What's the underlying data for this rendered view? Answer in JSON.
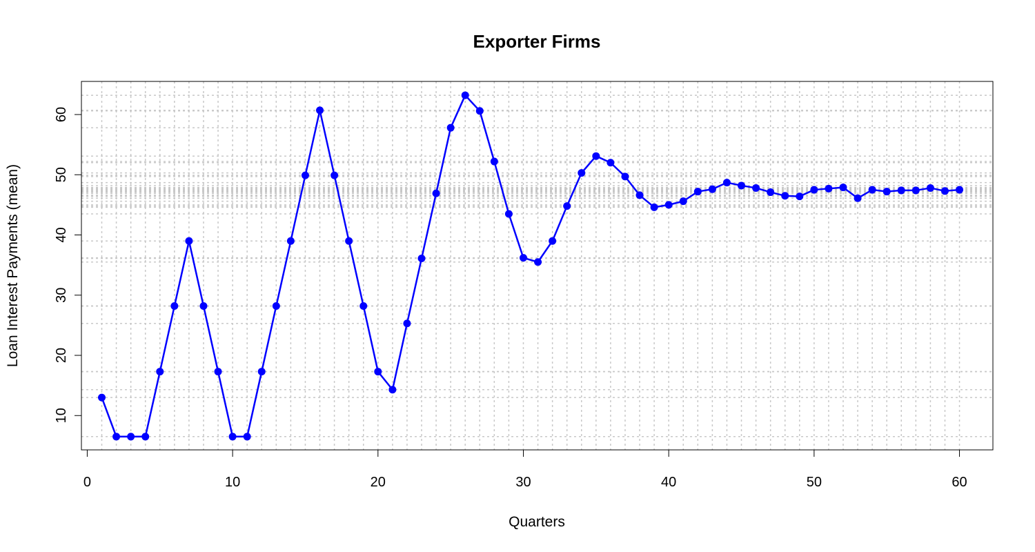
{
  "chart_data": {
    "type": "line",
    "title": "Exporter Firms",
    "xlabel": "Quarters",
    "ylabel": "Loan Interest Payments (mean)",
    "xlim": [
      -0.4,
      62.3
    ],
    "ylim": [
      4.3,
      65.5
    ],
    "xticks": [
      0,
      10,
      20,
      30,
      40,
      50,
      60
    ],
    "yticks": [
      10,
      20,
      30,
      40,
      50,
      60
    ],
    "grid": true,
    "legend": "none",
    "colors": {
      "series": "#0000ff",
      "grid": "#c8c8c8",
      "axis": "#000000"
    },
    "series": [
      {
        "x": [
          1,
          2,
          3,
          4,
          5,
          6,
          7,
          8,
          9,
          10,
          11,
          12,
          13,
          14,
          15,
          16,
          17,
          18,
          19,
          20,
          21,
          22,
          23,
          24,
          25,
          26,
          27,
          28,
          29,
          30,
          31,
          32,
          33,
          34,
          35,
          36,
          37,
          38,
          39,
          40,
          41,
          42,
          43,
          44,
          45,
          46,
          47,
          48,
          49,
          50,
          51,
          52,
          53,
          54,
          55,
          56,
          57,
          58,
          59,
          60
        ],
        "values": [
          13.0,
          6.5,
          6.5,
          6.5,
          17.3,
          28.2,
          39.0,
          28.2,
          17.3,
          6.5,
          6.5,
          17.3,
          28.2,
          39.0,
          49.9,
          60.7,
          49.9,
          39.0,
          28.2,
          17.3,
          14.3,
          25.3,
          36.1,
          46.9,
          57.8,
          63.2,
          60.6,
          52.2,
          43.5,
          36.2,
          35.5,
          39.0,
          44.8,
          50.3,
          53.1,
          52.0,
          49.7,
          46.6,
          44.6,
          45.0,
          45.6,
          47.2,
          47.6,
          48.7,
          48.2,
          47.8,
          47.1,
          46.5,
          46.4,
          47.5,
          47.7,
          47.9,
          46.1,
          47.5,
          47.2,
          47.4,
          47.4,
          47.8,
          47.3,
          47.5
        ]
      }
    ]
  }
}
